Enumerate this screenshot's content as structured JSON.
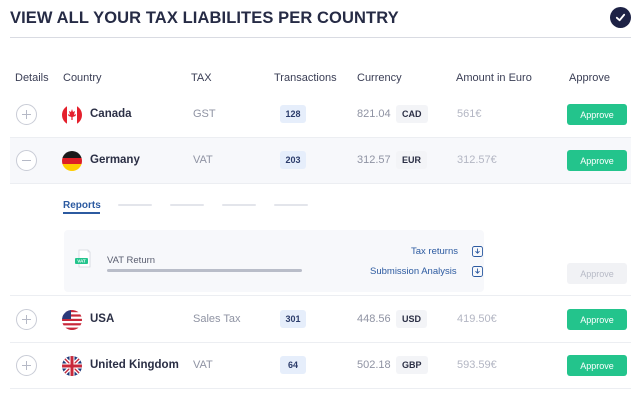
{
  "header": {
    "title": "VIEW ALL YOUR TAX LIABILITES PER COUNTRY"
  },
  "columns": {
    "details": "Details",
    "country": "Country",
    "tax": "TAX",
    "transactions": "Transactions",
    "currency": "Currency",
    "amount_eur": "Amount in Euro",
    "approve": "Approve"
  },
  "rows": [
    {
      "country": "Canada",
      "tax": "GST",
      "transactions": "128",
      "amount": "821.04",
      "currency": "CAD",
      "amount_eur": "561€",
      "approve": "Approve",
      "expanded": false
    },
    {
      "country": "Germany",
      "tax": "VAT",
      "transactions": "203",
      "amount": "312.57",
      "currency": "EUR",
      "amount_eur": "312.57€",
      "approve": "Approve",
      "expanded": true
    },
    {
      "country": "USA",
      "tax": "Sales Tax",
      "transactions": "301",
      "amount": "448.56",
      "currency": "USD",
      "amount_eur": "419.50€",
      "approve": "Approve",
      "expanded": false
    },
    {
      "country": "United Kingdom",
      "tax": "VAT",
      "transactions": "64",
      "amount": "502.18",
      "currency": "GBP",
      "amount_eur": "593.59€",
      "approve": "Approve",
      "expanded": false
    }
  ],
  "details": {
    "active_tab": "Reports",
    "report": {
      "title": "VAT Return",
      "icon_label": "VAT",
      "progress": 1.0
    },
    "links": {
      "tax_returns": "Tax returns",
      "submission_analysis": "Submission Analysis"
    },
    "approve": "Approve"
  },
  "colors": {
    "approve": "#23c48c",
    "link": "#2c5aa0",
    "header_dark": "#1d2245"
  },
  "icons": {
    "header_action": "check-icon",
    "download": "download-icon",
    "document": "document-icon"
  }
}
